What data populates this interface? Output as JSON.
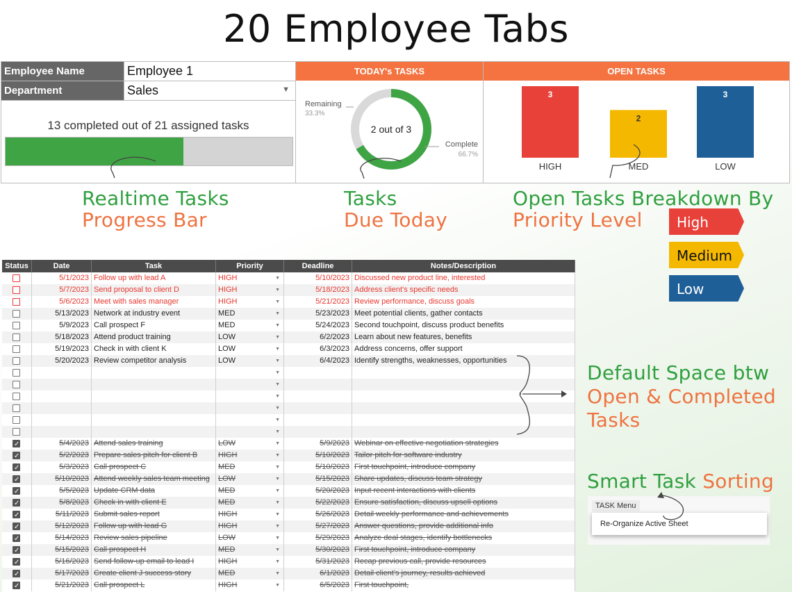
{
  "title": "20 Employee Tabs",
  "employee": {
    "name_label": "Employee Name",
    "name_value": "Employee 1",
    "dept_label": "Department",
    "dept_value": "Sales"
  },
  "progress": {
    "text": "13 completed out of 21 assigned tasks",
    "completed": 13,
    "total": 21
  },
  "today": {
    "header": "TODAY's TASKS",
    "center_text": "2 out of 3",
    "remaining_label": "Remaining",
    "remaining_pct": "33.3%",
    "complete_label": "Complete",
    "complete_pct": "66.7%",
    "complete_fraction": 0.667
  },
  "open": {
    "header": "OPEN TASKS",
    "bars": [
      {
        "label": "HIGH",
        "value": 3,
        "color": "#e8413a"
      },
      {
        "label": "MED",
        "value": 2,
        "color": "#f5b800"
      },
      {
        "label": "LOW",
        "value": 3,
        "color": "#1f5f98"
      }
    ]
  },
  "annotations": {
    "realtime_1": "Realtime Tasks",
    "realtime_2": "Progress Bar",
    "tasks_1": "Tasks",
    "tasks_2": "Due Today",
    "open_1": "Open Tasks Breakdown By",
    "open_2": "Priority Level",
    "default_1": "Default Space btw",
    "default_2": "Open & Completed",
    "default_3": "Tasks",
    "smart_1": "Smart Task",
    "smart_2": "Sorting"
  },
  "legend": [
    {
      "label": "High",
      "color": "#e8413a",
      "text": "#ffffff"
    },
    {
      "label": "Medium",
      "color": "#f5b800",
      "text": "#111111"
    },
    {
      "label": "Low",
      "color": "#1f5f98",
      "text": "#ffffff"
    }
  ],
  "menu": {
    "title": "TASK Menu",
    "item": "Re-Organize Active Sheet"
  },
  "table": {
    "headers": [
      "Status",
      "Date",
      "Task",
      "Priority",
      "Deadline",
      "Notes/Description"
    ],
    "rows": [
      {
        "state": "overdue",
        "date": "5/1/2023",
        "task": "Follow up with lead A",
        "priority": "HIGH",
        "deadline": "5/10/2023",
        "notes": "Discussed new product line, interested"
      },
      {
        "state": "overdue",
        "date": "5/7/2023",
        "task": "Send proposal to client D",
        "priority": "HIGH",
        "deadline": "5/18/2023",
        "notes": "Address client's specific needs"
      },
      {
        "state": "overdue",
        "date": "5/6/2023",
        "task": "Meet with sales manager",
        "priority": "HIGH",
        "deadline": "5/21/2023",
        "notes": "Review performance, discuss goals"
      },
      {
        "state": "open",
        "date": "5/13/2023",
        "task": "Network at industry event",
        "priority": "MED",
        "deadline": "5/23/2023",
        "notes": "Meet potential clients, gather contacts"
      },
      {
        "state": "open",
        "date": "5/9/2023",
        "task": "Call prospect F",
        "priority": "MED",
        "deadline": "5/24/2023",
        "notes": "Second touchpoint, discuss product benefits"
      },
      {
        "state": "open",
        "date": "5/18/2023",
        "task": "Attend product training",
        "priority": "LOW",
        "deadline": "6/2/2023",
        "notes": "Learn about new features, benefits"
      },
      {
        "state": "open",
        "date": "5/19/2023",
        "task": "Check in with client K",
        "priority": "LOW",
        "deadline": "6/3/2023",
        "notes": "Address concerns, offer support"
      },
      {
        "state": "open",
        "date": "5/20/2023",
        "task": "Review competitor analysis",
        "priority": "LOW",
        "deadline": "6/4/2023",
        "notes": "Identify strengths, weaknesses, opportunities"
      },
      {
        "state": "empty",
        "date": "",
        "task": "",
        "priority": "",
        "deadline": "",
        "notes": ""
      },
      {
        "state": "empty",
        "date": "",
        "task": "",
        "priority": "",
        "deadline": "",
        "notes": ""
      },
      {
        "state": "empty",
        "date": "",
        "task": "",
        "priority": "",
        "deadline": "",
        "notes": ""
      },
      {
        "state": "empty",
        "date": "",
        "task": "",
        "priority": "",
        "deadline": "",
        "notes": ""
      },
      {
        "state": "empty",
        "date": "",
        "task": "",
        "priority": "",
        "deadline": "",
        "notes": ""
      },
      {
        "state": "empty",
        "date": "",
        "task": "",
        "priority": "",
        "deadline": "",
        "notes": ""
      },
      {
        "state": "done",
        "date": "5/4/2023",
        "task": "Attend sales training",
        "priority": "LOW",
        "deadline": "5/9/2023",
        "notes": "Webinar on effective negotiation strategies"
      },
      {
        "state": "done",
        "date": "5/2/2023",
        "task": "Prepare sales pitch for client B",
        "priority": "HIGH",
        "deadline": "5/10/2023",
        "notes": "Tailor pitch for software industry"
      },
      {
        "state": "done",
        "date": "5/3/2023",
        "task": "Call prospect C",
        "priority": "MED",
        "deadline": "5/10/2023",
        "notes": "First touchpoint, introduce company"
      },
      {
        "state": "done",
        "date": "5/10/2023",
        "task": "Attend weekly sales team meeting",
        "priority": "LOW",
        "deadline": "5/15/2023",
        "notes": "Share updates, discuss team strategy"
      },
      {
        "state": "done",
        "date": "5/5/2023",
        "task": "Update CRM data",
        "priority": "MED",
        "deadline": "5/20/2023",
        "notes": "Input recent interactions with clients"
      },
      {
        "state": "done",
        "date": "5/8/2023",
        "task": "Check in with client E",
        "priority": "MED",
        "deadline": "5/22/2023",
        "notes": "Ensure satisfaction, discuss upsell options"
      },
      {
        "state": "done",
        "date": "5/11/2023",
        "task": "Submit sales report",
        "priority": "HIGH",
        "deadline": "5/26/2023",
        "notes": "Detail weekly performance and achievements"
      },
      {
        "state": "done",
        "date": "5/12/2023",
        "task": "Follow up with lead G",
        "priority": "HIGH",
        "deadline": "5/27/2023",
        "notes": "Answer questions, provide additional info"
      },
      {
        "state": "done",
        "date": "5/14/2023",
        "task": "Review sales pipeline",
        "priority": "LOW",
        "deadline": "5/29/2023",
        "notes": "Analyze deal stages, identify bottlenecks"
      },
      {
        "state": "done",
        "date": "5/15/2023",
        "task": "Call prospect H",
        "priority": "MED",
        "deadline": "5/30/2023",
        "notes": "First touchpoint, introduce company"
      },
      {
        "state": "done",
        "date": "5/16/2023",
        "task": "Send follow-up email to lead I",
        "priority": "HIGH",
        "deadline": "5/31/2023",
        "notes": "Recap previous call, provide resources"
      },
      {
        "state": "done",
        "date": "5/17/2023",
        "task": "Create client J success story",
        "priority": "MED",
        "deadline": "6/1/2023",
        "notes": "Detail client's journey, results achieved"
      },
      {
        "state": "done",
        "date": "5/21/2023",
        "task": "Call prospect L",
        "priority": "HIGH",
        "deadline": "6/5/2023",
        "notes": "First touchpoint,"
      }
    ]
  }
}
